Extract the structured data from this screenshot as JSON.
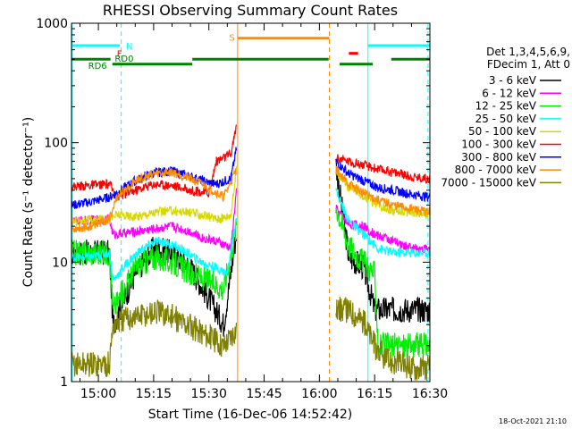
{
  "chart_data": {
    "type": "line",
    "title": "RHESSI Observing Summary Count Rates",
    "xlabel": "Start Time (16-Dec-06 14:52:42)",
    "ylabel": "Count Rate (s⁻¹ detector⁻¹)",
    "y_scale": "log",
    "ylim": [
      1,
      1000
    ],
    "xlim_minutes_after_1500": [
      -7.3,
      90
    ],
    "x_tick_labels": [
      "15:00",
      "15:15",
      "15:30",
      "15:45",
      "16:00",
      "16:15",
      "16:30"
    ],
    "x_tick_minutes": [
      0,
      15,
      30,
      45,
      60,
      75,
      90
    ],
    "y_tick_labels": [
      "1",
      "10",
      "100",
      "1000"
    ],
    "y_tick_values": [
      1,
      10,
      100,
      1000
    ],
    "footer_date": "18-Oct-2021 21:10",
    "legend_header": [
      "Det 1,3,4,5,6,9,",
      "FDecim 1, Att 0"
    ],
    "legend_position": "right",
    "data_gap_minutes": [
      36,
      64
    ],
    "series": [
      {
        "name": "3 - 6 keV",
        "color": "#000000",
        "x": [
          -7,
          -2,
          3,
          4,
          10,
          15,
          20,
          25,
          30,
          34,
          37.5,
          64.5,
          68,
          72,
          75
        ],
        "y": [
          12,
          12,
          12,
          3,
          8,
          13,
          12,
          9,
          5,
          3,
          18,
          65,
          11,
          9,
          4
        ]
      },
      {
        "name": "6 - 12 keV",
        "color": "#ff00ff",
        "x": [
          -7,
          3,
          4,
          10,
          15,
          20,
          25,
          28,
          32,
          36,
          37.5,
          64.5,
          68,
          72,
          75,
          78,
          82,
          86,
          90
        ],
        "y": [
          22,
          23,
          17,
          18,
          19,
          20,
          18,
          16,
          15,
          13,
          40,
          28,
          21,
          20,
          17,
          16,
          14,
          13,
          13
        ]
      },
      {
        "name": "12 - 25 keV",
        "color": "#00ee00",
        "x": [
          -7,
          3,
          4,
          10,
          15,
          20,
          25,
          30,
          34,
          37.5,
          64.5,
          68,
          72,
          75,
          76,
          90
        ],
        "y": [
          12,
          12,
          4,
          9,
          11,
          10,
          8,
          7,
          6,
          20,
          30,
          14,
          10,
          8,
          2,
          2
        ]
      },
      {
        "name": "25 - 50 keV",
        "color": "#00ffff",
        "x": [
          -7,
          -2,
          3,
          4,
          8,
          12,
          16,
          20,
          24,
          28,
          32,
          35,
          37.5,
          64.5,
          68,
          72,
          76,
          80,
          85,
          90
        ],
        "y": [
          11,
          11,
          12,
          7,
          10,
          13,
          15,
          14,
          12,
          10,
          9,
          8,
          25,
          40,
          22,
          17,
          13,
          12,
          12,
          12
        ]
      },
      {
        "name": "50 - 100 keV",
        "color": "#d8d800",
        "x": [
          -7,
          3,
          5,
          10,
          15,
          20,
          25,
          30,
          33,
          36,
          37.5,
          64.5,
          68,
          72,
          76,
          80,
          85,
          90
        ],
        "y": [
          22,
          23,
          25,
          24,
          26,
          27,
          26,
          24,
          23,
          25,
          60,
          58,
          42,
          36,
          30,
          27,
          26,
          25
        ]
      },
      {
        "name": "100 - 300 keV",
        "color": "#ff0000",
        "x": [
          -7,
          -2,
          3,
          5,
          10,
          15,
          20,
          25,
          30,
          32,
          36,
          37.5,
          64.5,
          68,
          72,
          76,
          80,
          85,
          90
        ],
        "y": [
          43,
          44,
          45,
          35,
          40,
          45,
          44,
          40,
          38,
          70,
          80,
          140,
          75,
          70,
          65,
          60,
          57,
          52,
          50
        ]
      },
      {
        "name": "300 - 800 keV",
        "color": "#0000ff",
        "x": [
          -7,
          -2,
          3,
          5,
          10,
          15,
          20,
          25,
          30,
          32,
          36,
          37.5,
          64.5,
          68,
          72,
          76,
          80,
          85,
          90
        ],
        "y": [
          30,
          32,
          35,
          38,
          48,
          56,
          58,
          52,
          46,
          45,
          50,
          90,
          70,
          55,
          48,
          42,
          40,
          37,
          35
        ]
      },
      {
        "name": "800 - 7000 keV",
        "color": "#ff8c00",
        "x": [
          -7,
          -2,
          3,
          5,
          10,
          15,
          20,
          25,
          30,
          34,
          37.5,
          64.5,
          68,
          72,
          76,
          80,
          85,
          90
        ],
        "y": [
          19,
          20,
          23,
          35,
          48,
          55,
          57,
          50,
          42,
          35,
          60,
          60,
          45,
          38,
          33,
          30,
          28,
          26
        ]
      },
      {
        "name": "7000 - 15000 keV",
        "color": "#808000",
        "x": [
          -7,
          -2,
          3,
          4,
          8,
          12,
          16,
          20,
          24,
          28,
          32,
          34,
          37.5,
          64.5,
          68,
          72,
          75,
          78,
          82,
          86,
          90
        ],
        "y": [
          1.4,
          1.4,
          1.4,
          3,
          3.4,
          3.6,
          3.8,
          3.5,
          3,
          2.6,
          2.2,
          2,
          2.8,
          4,
          4,
          3.2,
          2,
          1.5,
          1.4,
          1.3,
          1.3
        ]
      }
    ],
    "flag_bars": [
      {
        "label": "",
        "color": "#00ffff",
        "x": [
          -7.3,
          5.8
        ],
        "y": 650
      },
      {
        "label": "",
        "color": "#00ffff",
        "x": [
          73.2,
          90
        ],
        "y": 650
      },
      {
        "label": "S",
        "color": "#ff8c00",
        "x": [
          37.8,
          62.7
        ],
        "y": 750
      },
      {
        "label": "RD6",
        "color": "#008000",
        "x": [
          -7.3,
          3.3
        ],
        "y": 500
      },
      {
        "label": "",
        "color": "#008000",
        "x": [
          3.8,
          25.5
        ],
        "y": 455
      },
      {
        "label": "",
        "color": "#008000",
        "x": [
          25.5,
          62.5
        ],
        "y": 500
      },
      {
        "label": "",
        "color": "#008000",
        "x": [
          65.5,
          74.5
        ],
        "y": 455
      },
      {
        "label": "",
        "color": "#008000",
        "x": [
          79.5,
          90
        ],
        "y": 500
      },
      {
        "label": "",
        "color": "#ff0000",
        "x": [
          68,
          70.5
        ],
        "y": 560
      }
    ],
    "flag_marks": [
      {
        "label": "F",
        "color": "#ff0000",
        "x": 5.7,
        "y": 560
      },
      {
        "label": "RD0",
        "color": "#008000",
        "x": 7,
        "y": 510
      },
      {
        "label": "N",
        "color": "#00ffff",
        "x": 8.4,
        "y": 650
      }
    ],
    "vertical_lines": [
      {
        "x": -7.1,
        "color": "#00ffff",
        "style": "solid"
      },
      {
        "x": 6.2,
        "color": "#00ffff",
        "style": "dashed"
      },
      {
        "x": 37.8,
        "color": "#ff8c00",
        "style": "solid"
      },
      {
        "x": 62.7,
        "color": "#ff8c00",
        "style": "dashed"
      },
      {
        "x": 73.2,
        "color": "#00ffff",
        "style": "solid"
      },
      {
        "x": 89.5,
        "color": "#00ffff",
        "style": "dashed"
      }
    ]
  }
}
